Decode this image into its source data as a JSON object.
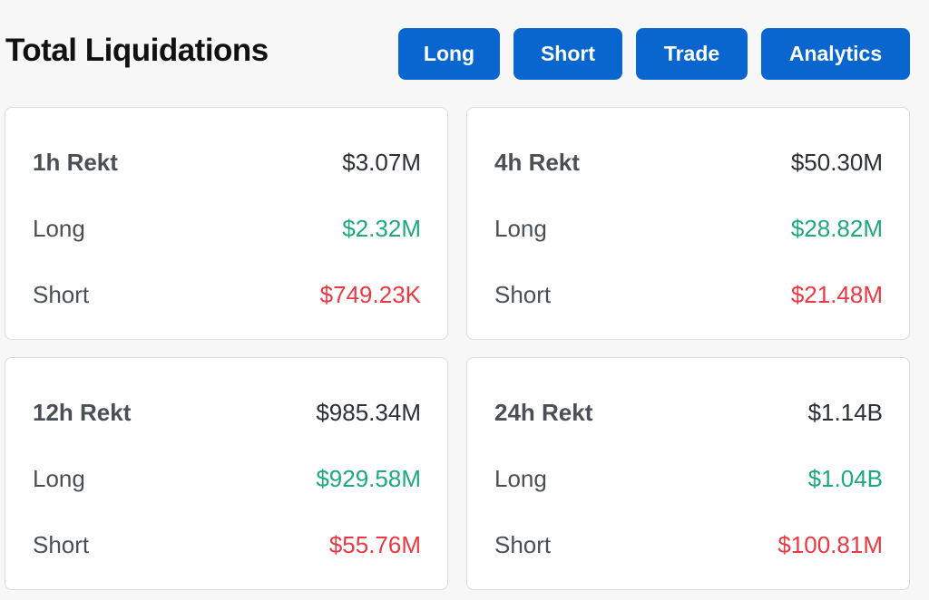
{
  "header": {
    "title": "Total Liquidations",
    "buttons": {
      "long": "Long",
      "short": "Short",
      "trade": "Trade",
      "analytics": "Analytics"
    }
  },
  "colors": {
    "accent": "#0a66cf",
    "long": "#1ea97c",
    "short": "#ea3943"
  },
  "cards": [
    {
      "period": "1h Rekt",
      "total": "$3.07M",
      "long_label": "Long",
      "long": "$2.32M",
      "short_label": "Short",
      "short": "$749.23K"
    },
    {
      "period": "4h Rekt",
      "total": "$50.30M",
      "long_label": "Long",
      "long": "$28.82M",
      "short_label": "Short",
      "short": "$21.48M"
    },
    {
      "period": "12h Rekt",
      "total": "$985.34M",
      "long_label": "Long",
      "long": "$929.58M",
      "short_label": "Short",
      "short": "$55.76M"
    },
    {
      "period": "24h Rekt",
      "total": "$1.14B",
      "long_label": "Long",
      "long": "$1.04B",
      "short_label": "Short",
      "short": "$100.81M"
    }
  ]
}
